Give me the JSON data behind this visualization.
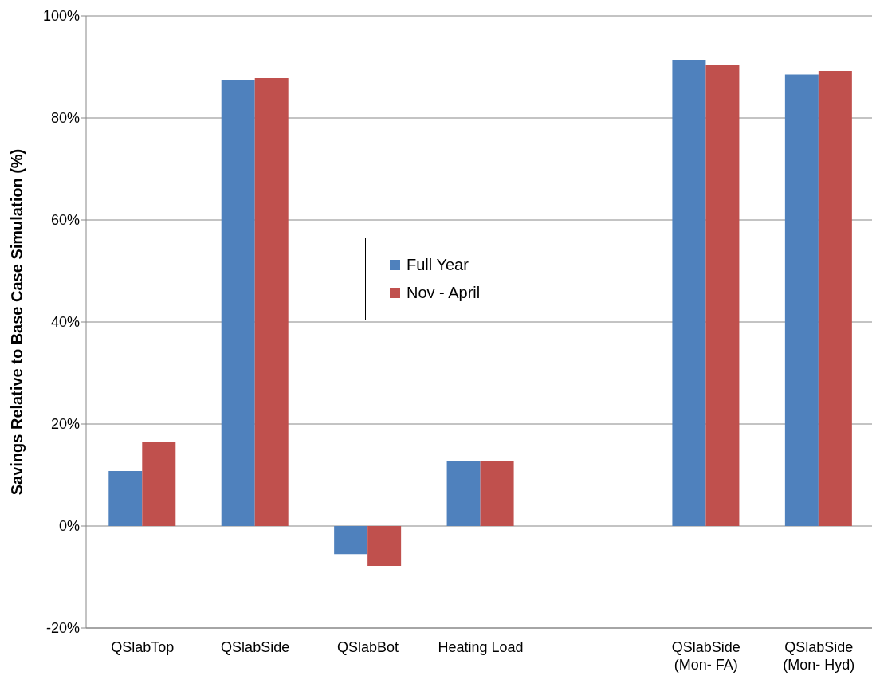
{
  "chart_data": {
    "type": "bar",
    "ylabel": "Savings Relative to Base Case Simulation (%)",
    "categories": [
      "QSlabTop",
      "QSlabSide",
      "QSlabBot",
      "Heating Load",
      null,
      "QSlabSide (Mon- FA)",
      "QSlabSide (Mon- Hyd)"
    ],
    "series": [
      {
        "name": "Full Year",
        "color": "#4f81bd",
        "values": [
          10.8,
          87.5,
          -5.5,
          12.8,
          null,
          91.4,
          88.5
        ]
      },
      {
        "name": "Nov - April",
        "color": "#c0504d",
        "values": [
          16.4,
          87.8,
          -7.8,
          12.8,
          null,
          90.3,
          89.2
        ]
      }
    ],
    "ylim": [
      -20,
      100
    ],
    "yticks": [
      {
        "value": -20,
        "label": "-20%"
      },
      {
        "value": 0,
        "label": "0%"
      },
      {
        "value": 20,
        "label": "20%"
      },
      {
        "value": 40,
        "label": "40%"
      },
      {
        "value": 60,
        "label": "60%"
      },
      {
        "value": 80,
        "label": "80%"
      },
      {
        "value": 100,
        "label": "100%"
      }
    ],
    "grid": "y",
    "legend": "center"
  }
}
